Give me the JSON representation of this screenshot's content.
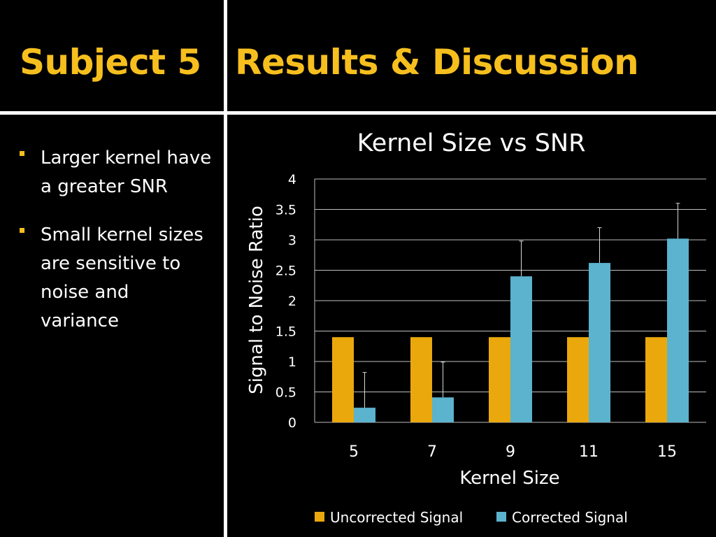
{
  "slide": {
    "left_title": "Subject 5",
    "right_title": "Results & Discussion",
    "bullets": [
      "Larger kernel have a greater SNR",
      "Small kernel sizes are sensitive to noise and variance"
    ],
    "colors": {
      "title": "#f6bf1e",
      "background": "#000000",
      "divider": "#ffffff"
    }
  },
  "chart_data": {
    "type": "bar",
    "title": "Kernel Size vs SNR",
    "xlabel": "Kernel Size",
    "ylabel": "Signal to Noise Ratio",
    "categories": [
      "5",
      "7",
      "9",
      "11",
      "15"
    ],
    "ylim": [
      0,
      4
    ],
    "yticks": [
      "0",
      "0.5",
      "1",
      "1.5",
      "2",
      "2.5",
      "3",
      "3.5",
      "4"
    ],
    "grid": true,
    "legend_position": "bottom",
    "series": [
      {
        "name": "Uncorrected Signal",
        "color": "#eaa80c",
        "values": [
          1.4,
          1.4,
          1.4,
          1.4,
          1.4
        ]
      },
      {
        "name": "Corrected Signal",
        "color": "#5bb3cd",
        "values": [
          0.24,
          0.41,
          2.4,
          2.62,
          3.02
        ],
        "error_plus": [
          0.58,
          0.58,
          0.58,
          0.58,
          0.58
        ]
      }
    ]
  }
}
